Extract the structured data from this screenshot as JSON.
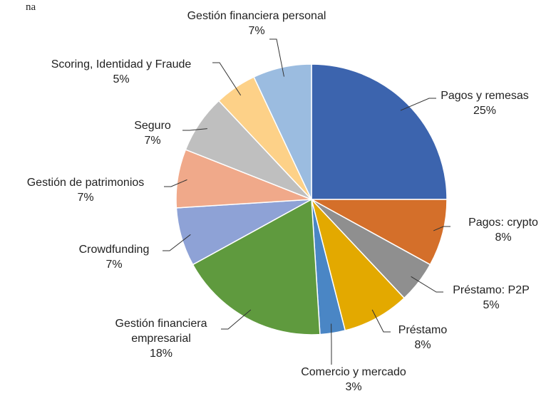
{
  "chart_data": {
    "type": "pie",
    "title": "na",
    "categories": [
      "Pagos y remesas",
      "Pagos: crypto",
      "Préstamo: P2P",
      "Préstamo",
      "Comercio y mercado",
      "Gestión financiera empresarial",
      "Crowdfunding",
      "Gestión de patrimonios",
      "Seguro",
      "Scoring, Identidad y Fraude",
      "Gestión financiera personal"
    ],
    "values": [
      25,
      8,
      5,
      8,
      3,
      18,
      7,
      7,
      7,
      5,
      7
    ],
    "value_labels": [
      "25%",
      "8%",
      "5%",
      "8%",
      "3%",
      "18%",
      "7%",
      "7%",
      "7%",
      "5%",
      "7%"
    ],
    "colors": [
      "#3c64ae",
      "#d46f2a",
      "#8f8f8f",
      "#e3a900",
      "#4a86c5",
      "#5f9a3e",
      "#8ea2d6",
      "#f0a98a",
      "#bfbfbf",
      "#fdd188",
      "#9bbce0"
    ]
  }
}
